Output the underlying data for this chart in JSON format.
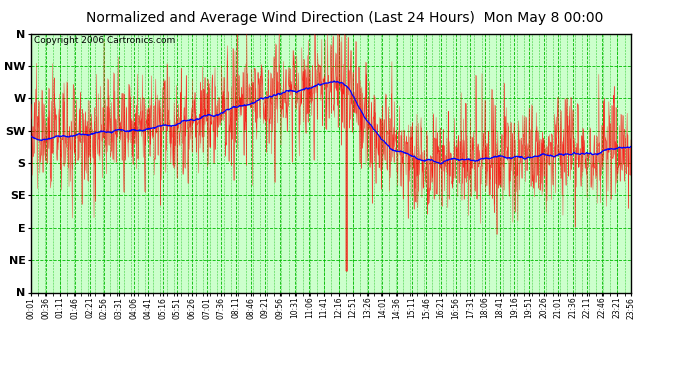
{
  "title": "Normalized and Average Wind Direction (Last 24 Hours)  Mon May 8 00:00",
  "copyright": "Copyright 2006 Cartronics.com",
  "background_color": "#ffffff",
  "plot_bg_color": "#ccffcc",
  "grid_color": "#00bb00",
  "red_line_color": "#ff0000",
  "blue_line_color": "#0000ff",
  "ytick_labels": [
    "N",
    "NW",
    "W",
    "SW",
    "S",
    "SE",
    "E",
    "NE",
    "N"
  ],
  "ytick_values": [
    360,
    315,
    270,
    225,
    180,
    135,
    90,
    45,
    0
  ],
  "ylim_min": 0,
  "ylim_max": 360,
  "xtick_labels": [
    "00:01",
    "00:36",
    "01:11",
    "01:46",
    "02:21",
    "02:56",
    "03:31",
    "04:06",
    "04:41",
    "05:16",
    "05:51",
    "06:26",
    "07:01",
    "07:36",
    "08:11",
    "08:46",
    "09:21",
    "09:56",
    "10:31",
    "11:06",
    "11:41",
    "12:16",
    "12:51",
    "13:26",
    "14:01",
    "14:36",
    "15:11",
    "15:46",
    "16:21",
    "16:56",
    "17:31",
    "18:06",
    "18:41",
    "19:16",
    "19:51",
    "20:26",
    "21:01",
    "21:36",
    "22:11",
    "22:46",
    "23:21",
    "23:56"
  ],
  "seed": 42,
  "title_fontsize": 10,
  "copyright_fontsize": 6.5,
  "ytick_fontsize": 8,
  "xtick_fontsize": 5.5
}
